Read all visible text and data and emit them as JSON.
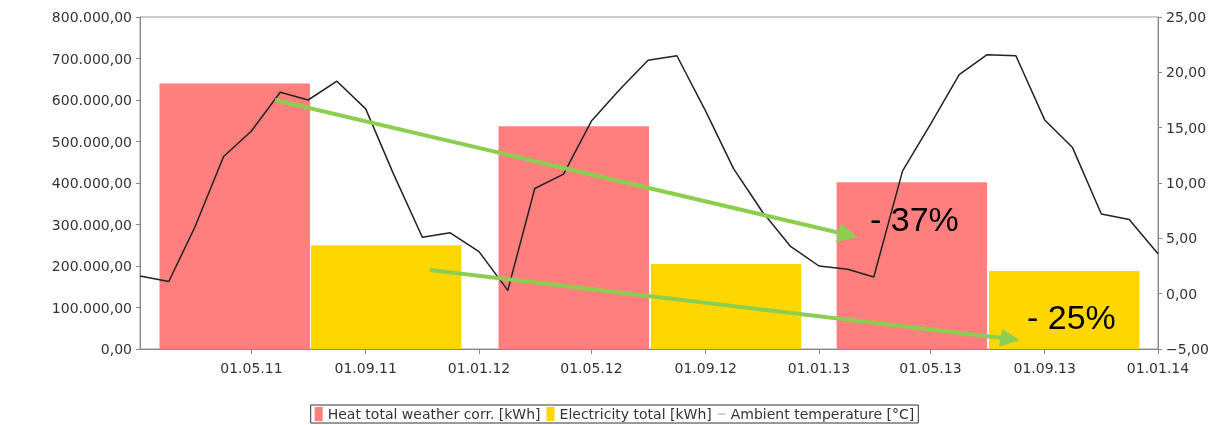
{
  "chart_data": {
    "type": "bar",
    "marker": "none",
    "legend": "bottom",
    "xlim": [
      "2011-01-01",
      "2014-01-01"
    ],
    "xticks": [
      {
        "value": "2011-05-01",
        "label": "01.05.11"
      },
      {
        "value": "2011-09-01",
        "label": "01.09.11"
      },
      {
        "value": "2012-01-01",
        "label": "01.01.12"
      },
      {
        "value": "2012-05-01",
        "label": "01.05.12"
      },
      {
        "value": "2012-09-01",
        "label": "01.09.12"
      },
      {
        "value": "2013-01-01",
        "label": "01.01.13"
      },
      {
        "value": "2013-05-01",
        "label": "01.05.13"
      },
      {
        "value": "2013-09-01",
        "label": "01.09.13"
      },
      {
        "value": "2014-01-01",
        "label": "01.01.14"
      }
    ],
    "ylim": [
      0,
      800000
    ],
    "yticks": [
      {
        "value": 0,
        "label": "0,00"
      },
      {
        "value": 100000,
        "label": "100.000,00"
      },
      {
        "value": 200000,
        "label": "200.000,00"
      },
      {
        "value": 300000,
        "label": "300.000,00"
      },
      {
        "value": 400000,
        "label": "400.000,00"
      },
      {
        "value": 500000,
        "label": "500.000,00"
      },
      {
        "value": 600000,
        "label": "600.000,00"
      },
      {
        "value": 700000,
        "label": "700.000,00"
      },
      {
        "value": 800000,
        "label": "800.000,00"
      }
    ],
    "y2lim": [
      -5,
      25
    ],
    "y2ticks": [
      {
        "value": -5,
        "label": "−5,00"
      },
      {
        "value": 0,
        "label": "0,00"
      },
      {
        "value": 5,
        "label": "5,00"
      },
      {
        "value": 10,
        "label": "10,00"
      },
      {
        "value": 15,
        "label": "15,00"
      },
      {
        "value": 20,
        "label": "20,00"
      },
      {
        "value": 25,
        "label": "25,00"
      }
    ],
    "series": [
      {
        "name": "Heat total weather corr. [kWh]",
        "color": "#ff7f7f",
        "x": [
          "2011-04-13",
          "2012-04-12",
          "2013-04-11"
        ],
        "values": [
          640000,
          537000,
          402000
        ]
      },
      {
        "name": "Electricity total [kWh]",
        "color": "#ffd700",
        "x": [
          "2011-09-23",
          "2012-09-23",
          "2013-09-22"
        ],
        "values": [
          250000,
          205000,
          188000
        ]
      },
      {
        "type": "line",
        "name": "Ambient temperature [°C]",
        "color": "#222222",
        "axis": "y2",
        "x": [
          "2011-01-01",
          "2011-02-01",
          "2011-03-01",
          "2011-04-01",
          "2011-05-01",
          "2011-06-01",
          "2011-07-01",
          "2011-08-01",
          "2011-09-01",
          "2011-10-01",
          "2011-11-01",
          "2011-12-01",
          "2012-01-01",
          "2012-02-01",
          "2012-03-01",
          "2012-04-01",
          "2012-05-01",
          "2012-06-01",
          "2012-07-01",
          "2012-08-01",
          "2012-09-01",
          "2012-10-01",
          "2012-11-01",
          "2012-12-01",
          "2013-01-01",
          "2013-02-01",
          "2013-03-01",
          "2013-04-01",
          "2013-05-01",
          "2013-06-01",
          "2013-07-01",
          "2013-08-01",
          "2013-09-01",
          "2013-10-01",
          "2013-11-01",
          "2013-12-01",
          "2014-01-01"
        ],
        "values": [
          1.6,
          1.1,
          6.0,
          12.4,
          14.7,
          18.2,
          17.5,
          19.2,
          16.7,
          10.8,
          5.1,
          5.5,
          3.8,
          0.3,
          9.5,
          10.8,
          15.6,
          18.5,
          21.1,
          21.5,
          16.5,
          11.3,
          7.4,
          4.3,
          2.5,
          2.2,
          1.5,
          11.1,
          15.3,
          19.8,
          21.6,
          21.5,
          15.7,
          13.2,
          7.2,
          6.7,
          3.6
        ]
      }
    ],
    "annotations": [
      "- 37%",
      "- 25%"
    ]
  }
}
